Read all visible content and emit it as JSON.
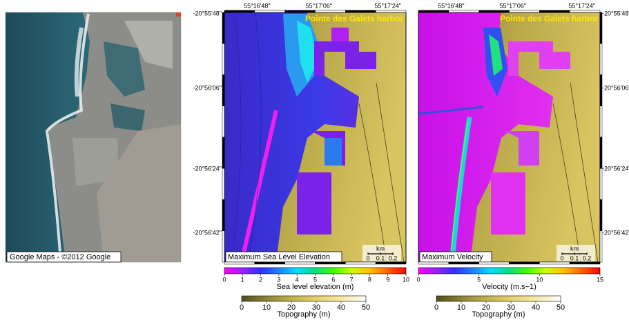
{
  "panels": [
    {
      "caption": "Google Maps - ©2012 Google"
    },
    {
      "title": "Pointe des Galets harbor",
      "caption": "Maximum Sea Level Elevation",
      "x_ticks": [
        "55°16'48\"",
        "55°17'06\"",
        "55°17'24\""
      ],
      "y_ticks": [
        "-20°55'48\"",
        "-20°56'06\"",
        "-20°56'24\"",
        "-20°56'42\""
      ],
      "scale_unit": "km",
      "scale_ticks": [
        0,
        0.1,
        0.2
      ]
    },
    {
      "title": "Pointe des Galets harbor",
      "caption": "Maximum Velocity",
      "x_ticks": [
        "55°16'48\"",
        "55°17'06\"",
        "55°17'24\""
      ],
      "y_ticks": [
        "-20°55'48\"",
        "-20°56'06\"",
        "-20°56'24\"",
        "-20°56'42\""
      ],
      "scale_unit": "km",
      "scale_ticks": [
        0,
        0.1,
        0.2
      ]
    }
  ],
  "colorbars": [
    {
      "label": "Sea level elevation (m)",
      "lim": [
        0,
        10
      ],
      "ticks": [
        0,
        1,
        2,
        3,
        4,
        5,
        6,
        7,
        8,
        9,
        10
      ],
      "colors": [
        "#ff00ff",
        "#9a20ff",
        "#3030ff",
        "#2080ff",
        "#00e0ff",
        "#00e080",
        "#40ff00",
        "#d0ff00",
        "#ffc000",
        "#ff6000",
        "#ff0000"
      ]
    },
    {
      "label": "Topography (m)",
      "lim": [
        0,
        50
      ],
      "ticks": [
        0,
        10,
        20,
        30,
        40,
        50
      ],
      "colors": [
        "#4e4e1e",
        "#8a8236",
        "#c2b04a",
        "#e6d070",
        "#f6e8a8",
        "#ffffff"
      ]
    },
    {
      "label": "Velocity (m.s−1)",
      "lim": [
        0,
        15
      ],
      "ticks": [
        0,
        5,
        10,
        15
      ],
      "colors": [
        "#ff00ff",
        "#9a20ff",
        "#3030ff",
        "#2080ff",
        "#00e0ff",
        "#00e080",
        "#40ff00",
        "#d0ff00",
        "#ffc000",
        "#ff6000",
        "#ff0000"
      ]
    },
    {
      "label": "Topography (m)",
      "lim": [
        0,
        50
      ],
      "ticks": [
        0,
        10,
        20,
        30,
        40,
        50
      ],
      "colors": [
        "#4e4e1e",
        "#8a8236",
        "#c2b04a",
        "#e6d070",
        "#f6e8a8",
        "#ffffff"
      ]
    }
  ]
}
